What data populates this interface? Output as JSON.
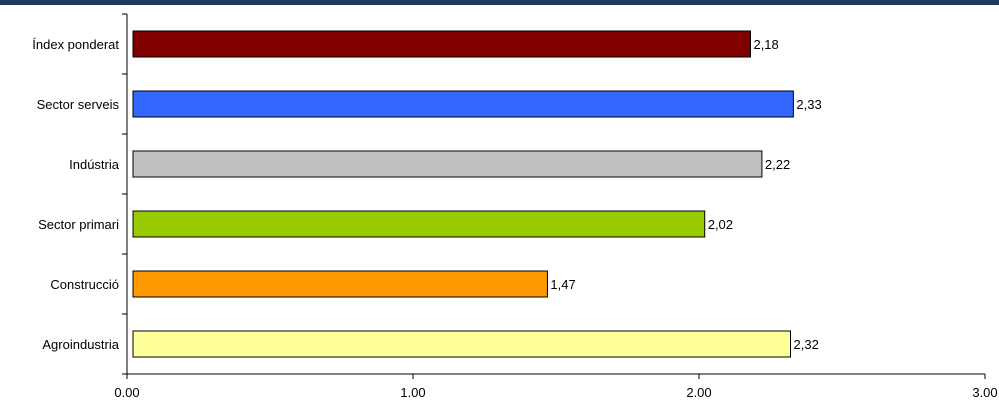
{
  "chart_data": {
    "type": "bar",
    "orientation": "horizontal",
    "categories": [
      "Índex ponderat",
      "Sector serveis",
      "Indústria",
      "Sector primari",
      "Construcció",
      "Agroindustria"
    ],
    "values": [
      2.18,
      2.33,
      2.22,
      2.02,
      1.47,
      2.32
    ],
    "value_labels": [
      "2,18",
      "2,33",
      "2,22",
      "2,02",
      "1,47",
      "2,32"
    ],
    "colors": [
      "#800000",
      "#3366ff",
      "#c0c0c0",
      "#99cc00",
      "#ff9900",
      "#ffff99"
    ],
    "xlim": [
      0,
      3
    ],
    "x_ticks": [
      0,
      1,
      2,
      3
    ],
    "x_tick_labels": [
      "0.00",
      "1.00",
      "2.00",
      "3.00"
    ],
    "title": "",
    "xlabel": "",
    "ylabel": "",
    "grid": false,
    "legend": "none"
  }
}
